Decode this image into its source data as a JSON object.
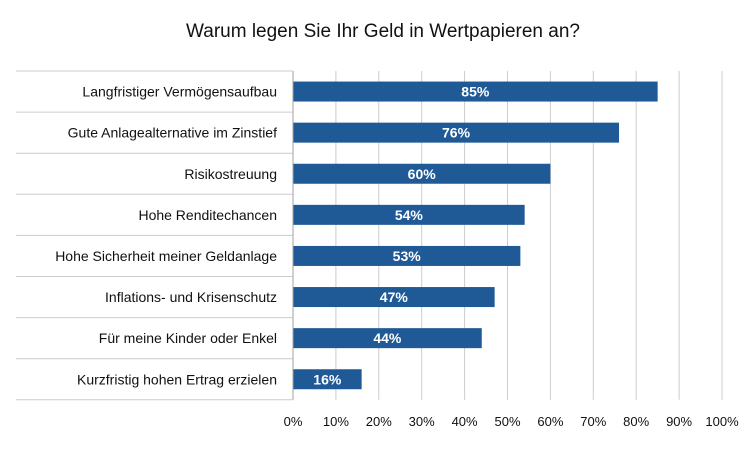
{
  "chart_data": {
    "type": "bar",
    "orientation": "horizontal",
    "title": "Warum legen Sie Ihr Geld in Wertpapieren an?",
    "categories": [
      "Langfristiger Vermögensaufbau",
      "Gute Anlagealternative im Zinstief",
      "Risikostreuung",
      "Hohe Renditechancen",
      "Hohe Sicherheit meiner Geldanlage",
      "Inflations- und Krisenschutz",
      "Für meine Kinder oder Enkel",
      "Kurzfristig hohen Ertrag erzielen"
    ],
    "values": [
      85,
      76,
      60,
      54,
      53,
      47,
      44,
      16
    ],
    "value_labels": [
      "85%",
      "76%",
      "60%",
      "54%",
      "53%",
      "47%",
      "44%",
      "16%"
    ],
    "xlim": [
      0,
      100
    ],
    "x_ticks": [
      0,
      10,
      20,
      30,
      40,
      50,
      60,
      70,
      80,
      90,
      100
    ],
    "x_tick_labels": [
      "0%",
      "10%",
      "20%",
      "30%",
      "40%",
      "50%",
      "60%",
      "70%",
      "80%",
      "90%",
      "100%"
    ],
    "xlabel": "",
    "ylabel": "",
    "grid": "vertical",
    "legend": "none",
    "colors": {
      "bar": "#1f5a96",
      "grid": "#cccccc",
      "axis": "#a0a0a0",
      "value_text": "#ffffff",
      "text": "#111111",
      "background": "#ffffff"
    }
  }
}
